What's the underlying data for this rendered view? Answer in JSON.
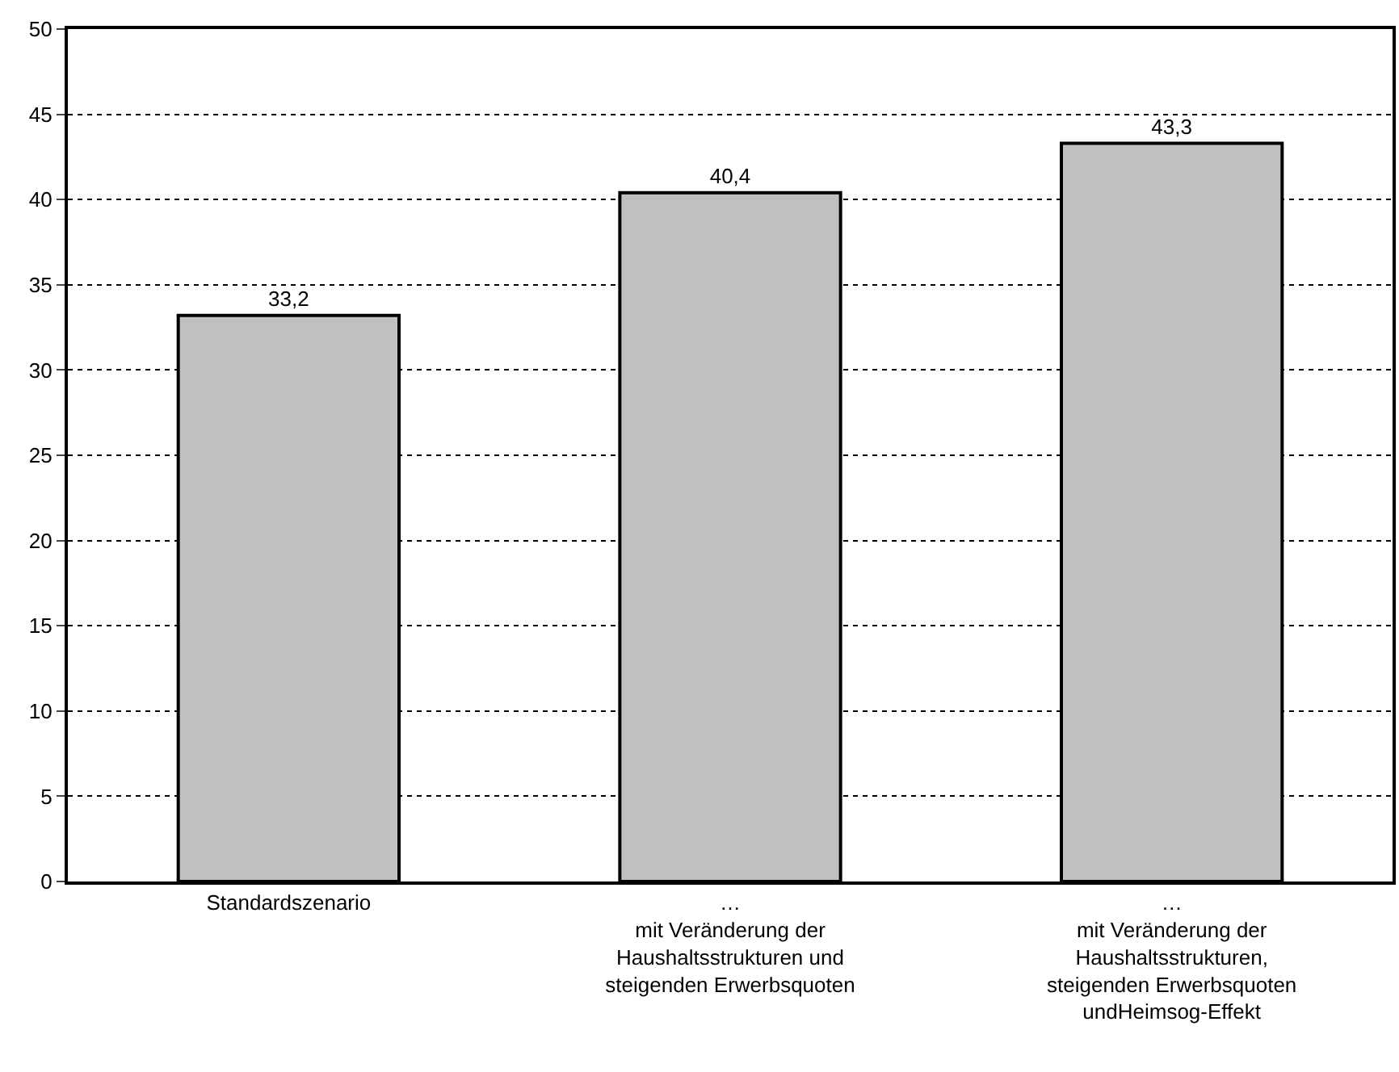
{
  "chart_data": {
    "type": "bar",
    "categories": [
      "Standardszenario",
      "…\nmit Veränderung der\nHaushaltsstrukturen und\nsteigenden Erwerbsquoten",
      "…\nmit Veränderung der\nHaushaltsstrukturen,\nsteigenden Erwerbsquoten\nundHeimsog-Effekt"
    ],
    "values": [
      33.2,
      40.4,
      43.3
    ],
    "value_labels": [
      "33,2",
      "40,4",
      "43,3"
    ],
    "color": "#c0c0c0",
    "ylim": [
      0,
      50
    ],
    "yticks": [
      0,
      5,
      10,
      15,
      20,
      25,
      30,
      35,
      40,
      45,
      50
    ],
    "grid": "y",
    "line_style": "dotted",
    "legend": false
  }
}
